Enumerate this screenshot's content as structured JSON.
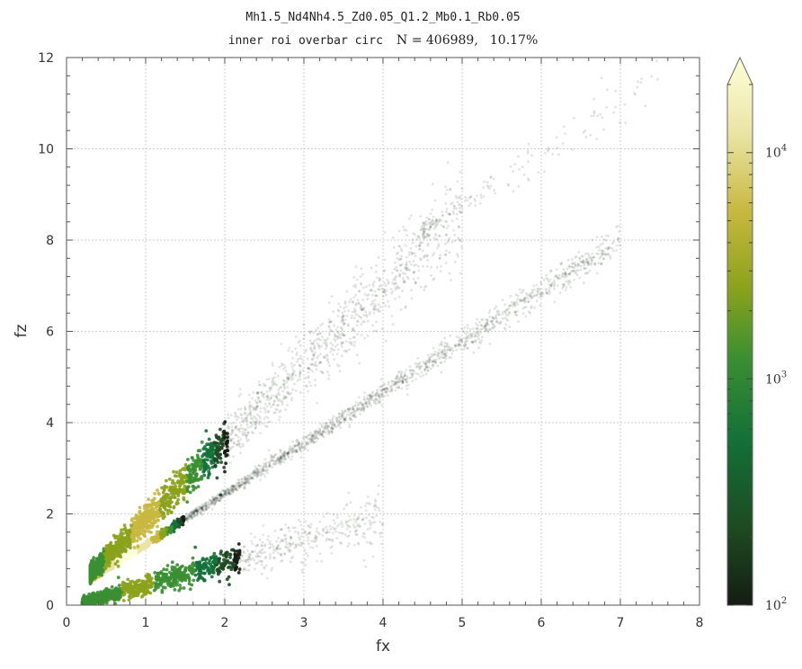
{
  "chart_data": {
    "type": "scatter",
    "title": "Mh1.5_Nd4Nh4.5_Zd0.05_Q1.2_Mb0.1_Rb0.05",
    "subtitle": {
      "prefix": "inner roi overbar circ",
      "stat": "N = 406989,",
      "percent": "10.17%"
    },
    "xlabel": "fx",
    "ylabel": "fz",
    "xlim": [
      0,
      8
    ],
    "ylim": [
      0,
      12
    ],
    "x_ticks": [
      0,
      1,
      2,
      3,
      4,
      5,
      6,
      7,
      8
    ],
    "y_ticks": [
      0,
      2,
      4,
      6,
      8,
      10,
      12
    ],
    "grid": true,
    "log_density_colorbar": {
      "min": 100,
      "max": 20000,
      "scale": "log",
      "tick_labels": [
        {
          "base": "10",
          "exp": "2",
          "value": 100
        },
        {
          "base": "10",
          "exp": "3",
          "value": 1000
        },
        {
          "base": "10",
          "exp": "4",
          "value": 10000
        }
      ],
      "extend": "max",
      "colors": [
        "#141d12",
        "#1e4a22",
        "#137038",
        "#3a8f32",
        "#8ba21c",
        "#c8b83f",
        "#e9e4a4",
        "#ffffd8"
      ]
    },
    "density_branches": [
      {
        "name": "",
        "x_start": 0.3,
        "x_end": 7.0,
        "y_at_start": 0.55,
        "y_at_end": 8.0,
        "peak_x": 0.75,
        "peak_density": 12000
      },
      {
        "name": "",
        "x_start": 0.3,
        "x_end": 5.0,
        "y_at_start": 0.7,
        "y_at_end": 8.6,
        "peak_x": 1.0,
        "peak_density": 3000
      },
      {
        "name": "",
        "x_start": 0.2,
        "x_end": 4.0,
        "y_at_start": 0.05,
        "y_at_end": 1.9,
        "peak_x": 0.9,
        "peak_density": 1500
      },
      {
        "name": "",
        "x_start": 4.5,
        "x_end": 7.5,
        "y_at_start": 8.2,
        "y_at_end": 11.5,
        "peak_x": 5.5,
        "peak_density": 10
      }
    ]
  }
}
